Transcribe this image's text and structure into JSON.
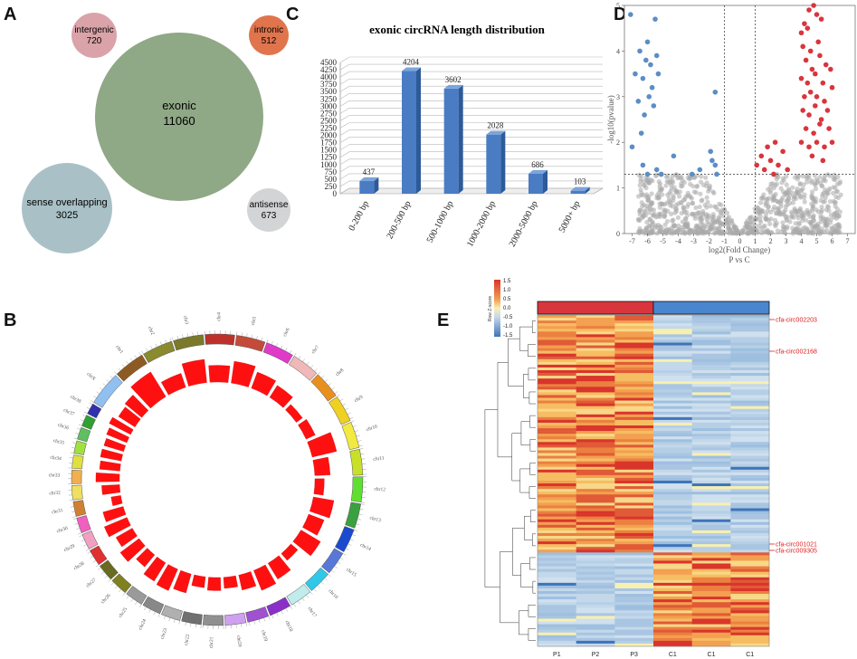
{
  "panel_letters": [
    "A",
    "B",
    "C",
    "D",
    "E"
  ],
  "chart_data": [
    {
      "type": "bubble",
      "panel": "A",
      "bubbles": [
        {
          "label": "exonic",
          "value": 11060,
          "color": "#8fa886"
        },
        {
          "label": "sense overlapping",
          "value": 3025,
          "color": "#a9c1c6"
        },
        {
          "label": "intergenic",
          "value": 720,
          "color": "#d9a3a9"
        },
        {
          "label": "intronic",
          "value": 512,
          "color": "#e0744d"
        },
        {
          "label": "antisense",
          "value": 673,
          "color": "#d3d4d6"
        }
      ]
    },
    {
      "type": "bar",
      "panel": "C",
      "title": "exonic circRNA length distribution",
      "categories": [
        "0-200 bp",
        "200-500 bp",
        "500-1000 bp",
        "1000-2000 bp",
        "2000-5000 bp",
        "5000+ bp"
      ],
      "values": [
        437,
        4204,
        3602,
        2028,
        686,
        103
      ],
      "ylim": [
        0,
        4500
      ],
      "yticks": [
        0,
        250,
        500,
        750,
        1000,
        1250,
        1500,
        1750,
        2000,
        2250,
        2500,
        2750,
        3000,
        3250,
        3500,
        3750,
        4000,
        4250,
        4500
      ],
      "grid": true,
      "color": "#4a7cc4"
    },
    {
      "type": "scatter",
      "panel": "D",
      "xlabel": "log2(Fold Change)",
      "ylabel": "-log10(pvalue)",
      "subtitle": "P vs C",
      "xlim": [
        -7.5,
        7.5
      ],
      "ylim": [
        0,
        5
      ],
      "xticks": [
        -7,
        -6,
        -5,
        -4,
        -3,
        -2,
        -1,
        0,
        1,
        2,
        3,
        4,
        5,
        6,
        7
      ],
      "yticks": [
        0,
        1,
        2,
        3,
        4,
        5
      ],
      "thresholds": {
        "fc": 1,
        "pvalue": 1.3
      },
      "colors": {
        "down": "#5b8ec6",
        "up": "#d9353d",
        "ns": "#a9a9a9"
      },
      "down_points": [
        [
          -7.1,
          4.8
        ],
        [
          -6.8,
          3.5
        ],
        [
          -6.5,
          4.0
        ],
        [
          -6.3,
          3.4
        ],
        [
          -6.1,
          3.8
        ],
        [
          -6.0,
          4.2
        ],
        [
          -5.9,
          3.0
        ],
        [
          -5.8,
          3.7
        ],
        [
          -5.7,
          3.2
        ],
        [
          -5.5,
          4.7
        ],
        [
          -5.4,
          3.9
        ],
        [
          -6.6,
          2.9
        ],
        [
          -6.2,
          2.6
        ],
        [
          -5.6,
          2.8
        ],
        [
          -5.3,
          3.5
        ],
        [
          -6.4,
          2.2
        ],
        [
          -7.0,
          1.9
        ],
        [
          -6.3,
          1.5
        ],
        [
          -6.0,
          1.3
        ],
        [
          -5.4,
          1.4
        ],
        [
          -5.1,
          1.3
        ],
        [
          -4.3,
          1.7
        ],
        [
          -3.1,
          1.3
        ],
        [
          -2.6,
          1.4
        ],
        [
          -1.9,
          1.8
        ],
        [
          -1.8,
          1.6
        ],
        [
          -1.6,
          1.5
        ],
        [
          -1.5,
          1.3
        ],
        [
          -1.6,
          3.1
        ]
      ],
      "up_points": [
        [
          4.0,
          4.4
        ],
        [
          4.2,
          4.6
        ],
        [
          4.4,
          4.5
        ],
        [
          4.5,
          4.9
        ],
        [
          4.8,
          5.0
        ],
        [
          5.0,
          4.8
        ],
        [
          5.3,
          4.7
        ],
        [
          4.1,
          4.1
        ],
        [
          4.6,
          4.0
        ],
        [
          5.1,
          4.2
        ],
        [
          4.3,
          3.8
        ],
        [
          4.7,
          3.6
        ],
        [
          5.2,
          3.9
        ],
        [
          5.6,
          3.7
        ],
        [
          4.0,
          3.4
        ],
        [
          4.4,
          3.3
        ],
        [
          4.9,
          3.5
        ],
        [
          5.4,
          3.3
        ],
        [
          5.9,
          3.6
        ],
        [
          4.2,
          3.0
        ],
        [
          4.6,
          3.1
        ],
        [
          5.0,
          3.0
        ],
        [
          5.5,
          2.9
        ],
        [
          6.0,
          3.2
        ],
        [
          4.1,
          2.7
        ],
        [
          4.5,
          2.6
        ],
        [
          4.9,
          2.8
        ],
        [
          5.3,
          2.5
        ],
        [
          5.7,
          2.7
        ],
        [
          4.3,
          2.3
        ],
        [
          4.8,
          2.2
        ],
        [
          5.2,
          2.4
        ],
        [
          5.8,
          2.3
        ],
        [
          4.0,
          2.0
        ],
        [
          4.5,
          1.9
        ],
        [
          5.0,
          2.0
        ],
        [
          5.5,
          1.9
        ],
        [
          6.0,
          2.0
        ],
        [
          4.7,
          1.7
        ],
        [
          5.4,
          1.6
        ],
        [
          1.1,
          1.5
        ],
        [
          1.4,
          1.7
        ],
        [
          1.6,
          1.4
        ],
        [
          1.8,
          1.9
        ],
        [
          2.0,
          1.6
        ],
        [
          2.2,
          1.3
        ],
        [
          2.5,
          1.5
        ],
        [
          2.8,
          1.8
        ],
        [
          3.1,
          1.4
        ],
        [
          2.3,
          2.0
        ]
      ]
    },
    {
      "type": "heatmap",
      "panel": "E",
      "columns": [
        "P1",
        "P2",
        "P3",
        "C1",
        "C1",
        "C1"
      ],
      "colorbar_label": "Row Z-score",
      "colorbar_ticks": [
        "1.5",
        "1.0",
        "0.5",
        "0.0",
        "-0.5",
        "-1.0",
        "-1.5"
      ],
      "group_colors": [
        "#d9353d",
        "#4a86d0"
      ],
      "annotations": [
        "cfa-circ002203",
        "cfa-circ002168",
        "cfa-circ001021",
        "cfa-circ009305"
      ],
      "up_block_fraction": 0.72
    }
  ],
  "circos": {
    "chromosomes": [
      "chr1",
      "chr2",
      "chr3",
      "chr4",
      "chr5",
      "chr6",
      "chr7",
      "chr8",
      "chr9",
      "chr10",
      "chr11",
      "chr12",
      "chr13",
      "chr14",
      "chr15",
      "chr16",
      "chr17",
      "chr18",
      "chr19",
      "chr20",
      "chr21",
      "chr22",
      "chr23",
      "chr24",
      "chr25",
      "chr26",
      "chr27",
      "chr28",
      "chr29",
      "chr30",
      "chr31",
      "chr32",
      "chr33",
      "chr34",
      "chr35",
      "chr36",
      "chr37",
      "chr38",
      "chrX"
    ],
    "chrom_colors": [
      "#8e5a24",
      "#8a8a2e",
      "#7a7a2a",
      "#c0302a",
      "#c44b3a",
      "#e03ac8",
      "#f0b8b8",
      "#e8901e",
      "#f0d020",
      "#f2ea40",
      "#c8e02a",
      "#5fe030",
      "#3aa040",
      "#1a4ad0",
      "#5878d8",
      "#30c8e8",
      "#c0ecec",
      "#8a30c8",
      "#a050d0",
      "#d0a0f0",
      "#909090",
      "#707070",
      "#b0b0b0",
      "#888888",
      "#9a9a9a",
      "#808020",
      "#6a6a20",
      "#e03030",
      "#f0a0c0",
      "#f060c0",
      "#d08030",
      "#f0e060",
      "#f0b050",
      "#e0e040",
      "#a0e040",
      "#60c060",
      "#30a030",
      "#3030b0",
      "#90c0f0"
    ],
    "bar_color": "#ff1010"
  }
}
